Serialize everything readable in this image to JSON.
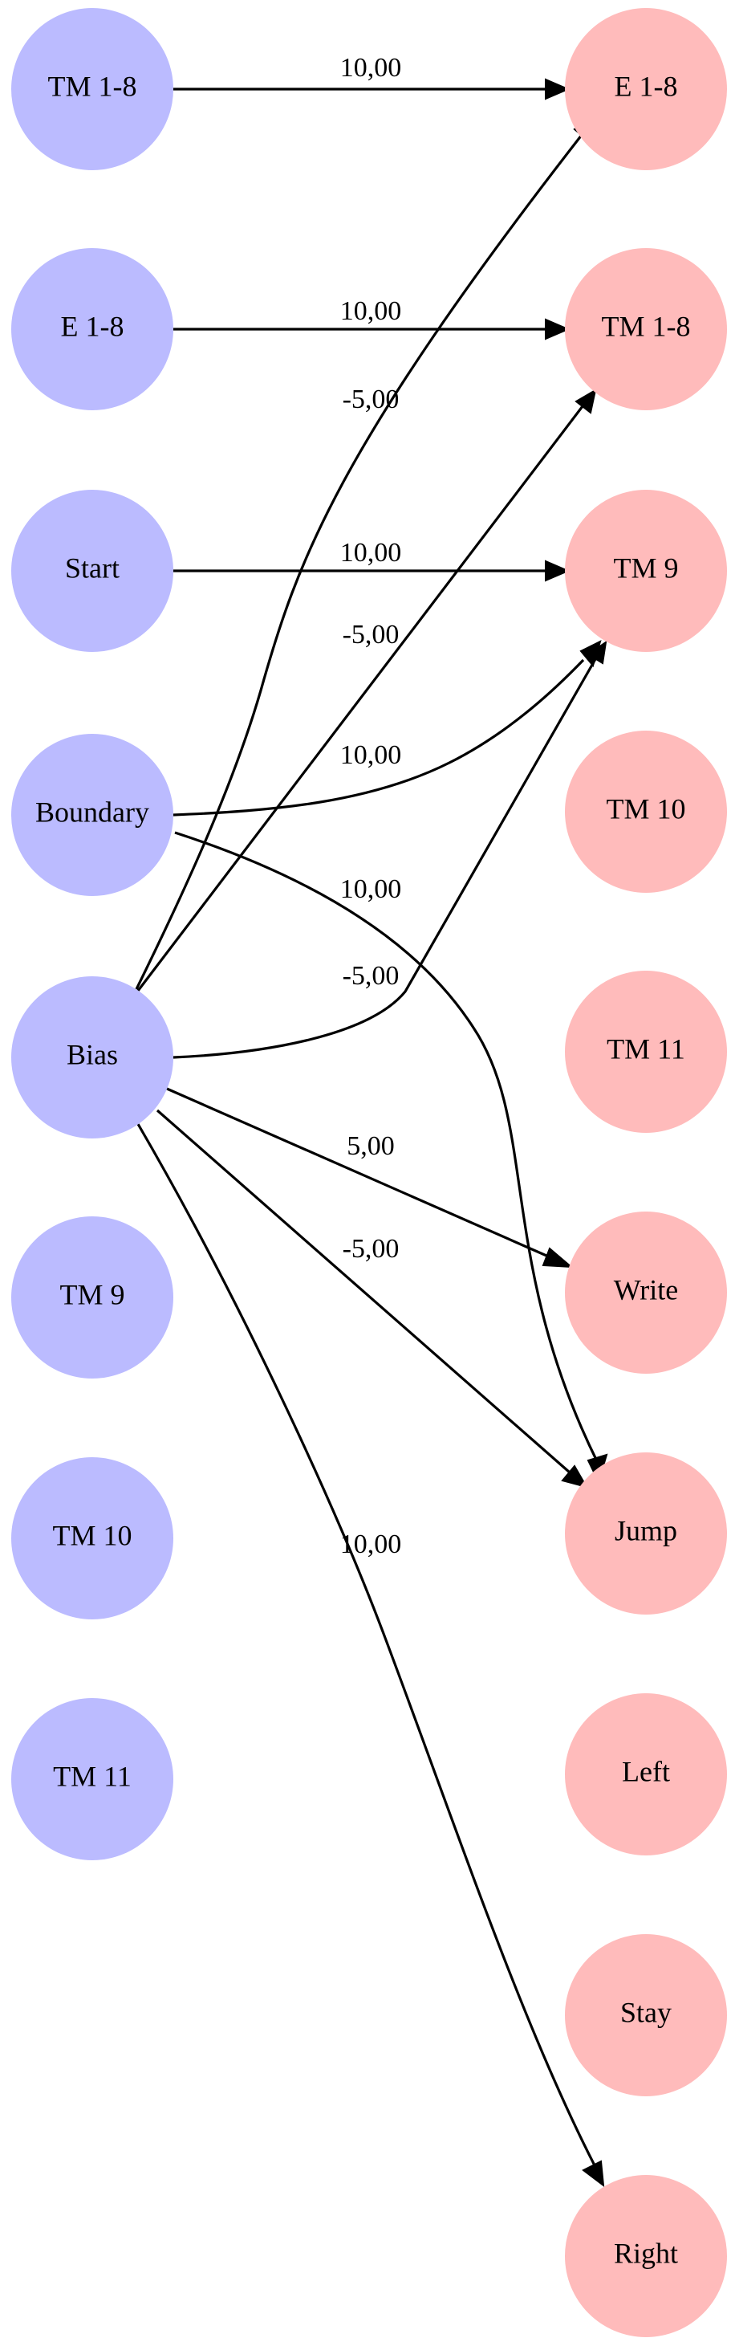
{
  "colors": {
    "input_fill": "#bbbbff",
    "output_fill": "#ffbbbb",
    "edge": "#000000",
    "background": "#ffffff"
  },
  "diagram": {
    "input_nodes": [
      "TM 1-8",
      "E 1-8",
      "Start",
      "Boundary",
      "Bias",
      "TM 9",
      "TM 10",
      "TM 11"
    ],
    "output_nodes": [
      "E 1-8",
      "TM 1-8",
      "TM 9",
      "TM 10",
      "TM 11",
      "Write",
      "Jump",
      "Left",
      "Stay",
      "Right"
    ],
    "edges": [
      {
        "from": "TM 1-8",
        "to": "E 1-8",
        "weight": "10,00"
      },
      {
        "from": "E 1-8",
        "to": "TM 1-8",
        "weight": "10,00"
      },
      {
        "from": "Start",
        "to": "TM 9",
        "weight": "10,00"
      },
      {
        "from": "Boundary",
        "to": "TM 9",
        "weight": "10,00"
      },
      {
        "from": "Boundary",
        "to": "Jump",
        "weight": "10,00"
      },
      {
        "from": "Bias",
        "to": "E 1-8",
        "weight": "-5,00"
      },
      {
        "from": "Bias",
        "to": "TM 1-8",
        "weight": "-5,00"
      },
      {
        "from": "Bias",
        "to": "TM 9",
        "weight": "-5,00"
      },
      {
        "from": "Bias",
        "to": "Write",
        "weight": "5,00"
      },
      {
        "from": "Bias",
        "to": "Jump",
        "weight": "-5,00"
      },
      {
        "from": "Bias",
        "to": "Right",
        "weight": "10,00"
      }
    ]
  }
}
